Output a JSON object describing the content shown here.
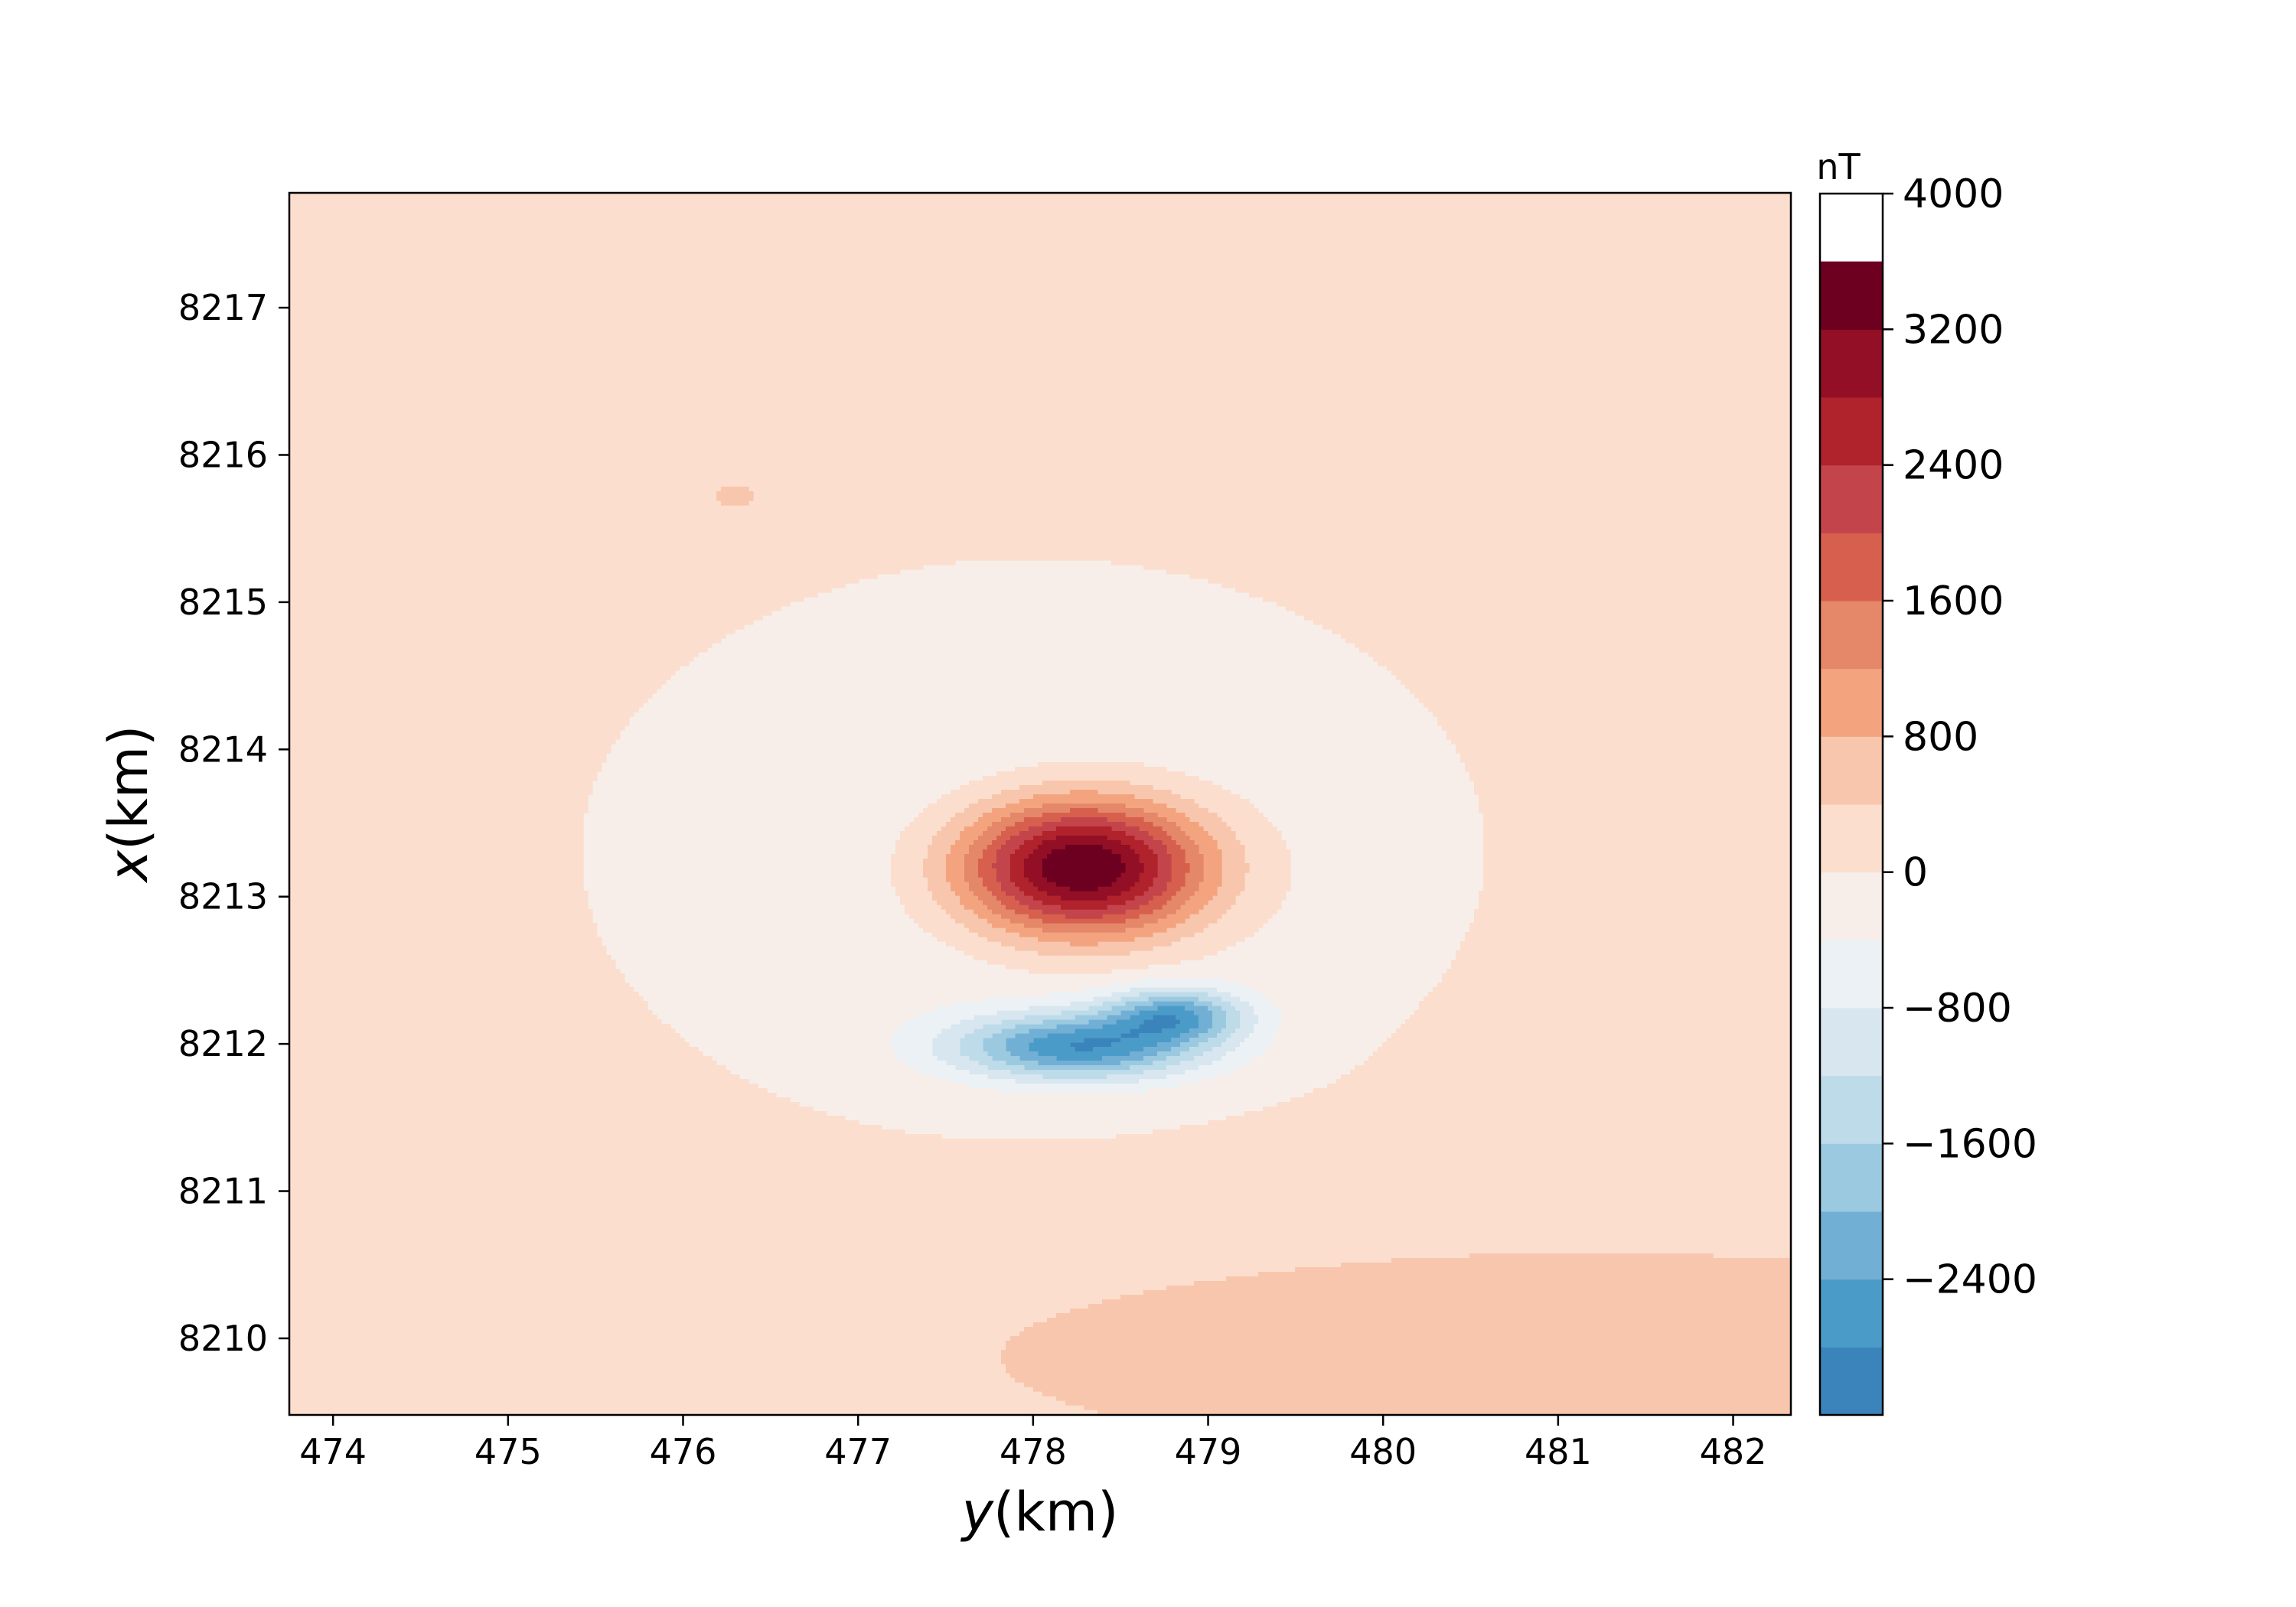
{
  "chart_data": {
    "type": "filled-contour",
    "title": "",
    "xlabel_var": "y",
    "xlabel_unit": "(km)",
    "ylabel_var": "x",
    "ylabel_unit": "(km)",
    "xlim": [
      473.75,
      482.33
    ],
    "ylim": [
      8209.48,
      8217.78
    ],
    "xticks": [
      "474",
      "475",
      "476",
      "477",
      "478",
      "479",
      "480",
      "481",
      "482"
    ],
    "yticks": [
      "8210",
      "8211",
      "8212",
      "8213",
      "8214",
      "8215",
      "8216",
      "8217"
    ],
    "colorbar": {
      "unit": "nT",
      "range": [
        -3200,
        4000
      ],
      "level_step": 400,
      "tick_labels": [
        "4000",
        "3200",
        "2400",
        "1600",
        "800",
        "0",
        "−800",
        "−1600",
        "−2400"
      ],
      "colors_low_to_high": [
        "#3a84bb",
        "#4b9bc9",
        "#72afd5",
        "#9bc9e0",
        "#bedbea",
        "#d7e6ef",
        "#ebf1f4",
        "#f7eeea",
        "#fbdecd",
        "#f8c6ac",
        "#f3a47f",
        "#e58769",
        "#d6604d",
        "#c3444a",
        "#b0222c",
        "#920f25",
        "#6d0020"
      ]
    },
    "field": {
      "background_value": 150,
      "anomalies": [
        {
          "name": "positive-peak",
          "y": 478.28,
          "x": 8213.2,
          "amplitude": 4050,
          "sigma_y": 0.5,
          "sigma_x": 0.33
        },
        {
          "name": "negative-trough-west",
          "y": 478.25,
          "x": 8211.98,
          "amplitude": -2600,
          "sigma_y": 0.5,
          "sigma_x": 0.16
        },
        {
          "name": "negative-trough-east",
          "y": 478.82,
          "x": 8212.2,
          "amplitude": -2050,
          "sigma_y": 0.28,
          "sigma_x": 0.13
        },
        {
          "name": "negative-halo",
          "y": 478.0,
          "x": 8213.3,
          "amplitude": -600,
          "sigma_y": 1.55,
          "sigma_x": 1.2
        },
        {
          "name": "southern-positive-band",
          "y": 481.0,
          "x": 8209.9,
          "amplitude": 550,
          "sigma_y": 2.6,
          "sigma_x": 0.55
        },
        {
          "name": "small-positive-blob",
          "y": 476.3,
          "x": 8215.72,
          "amplitude": 420,
          "sigma_y": 0.12,
          "sigma_x": 0.09
        }
      ]
    }
  }
}
